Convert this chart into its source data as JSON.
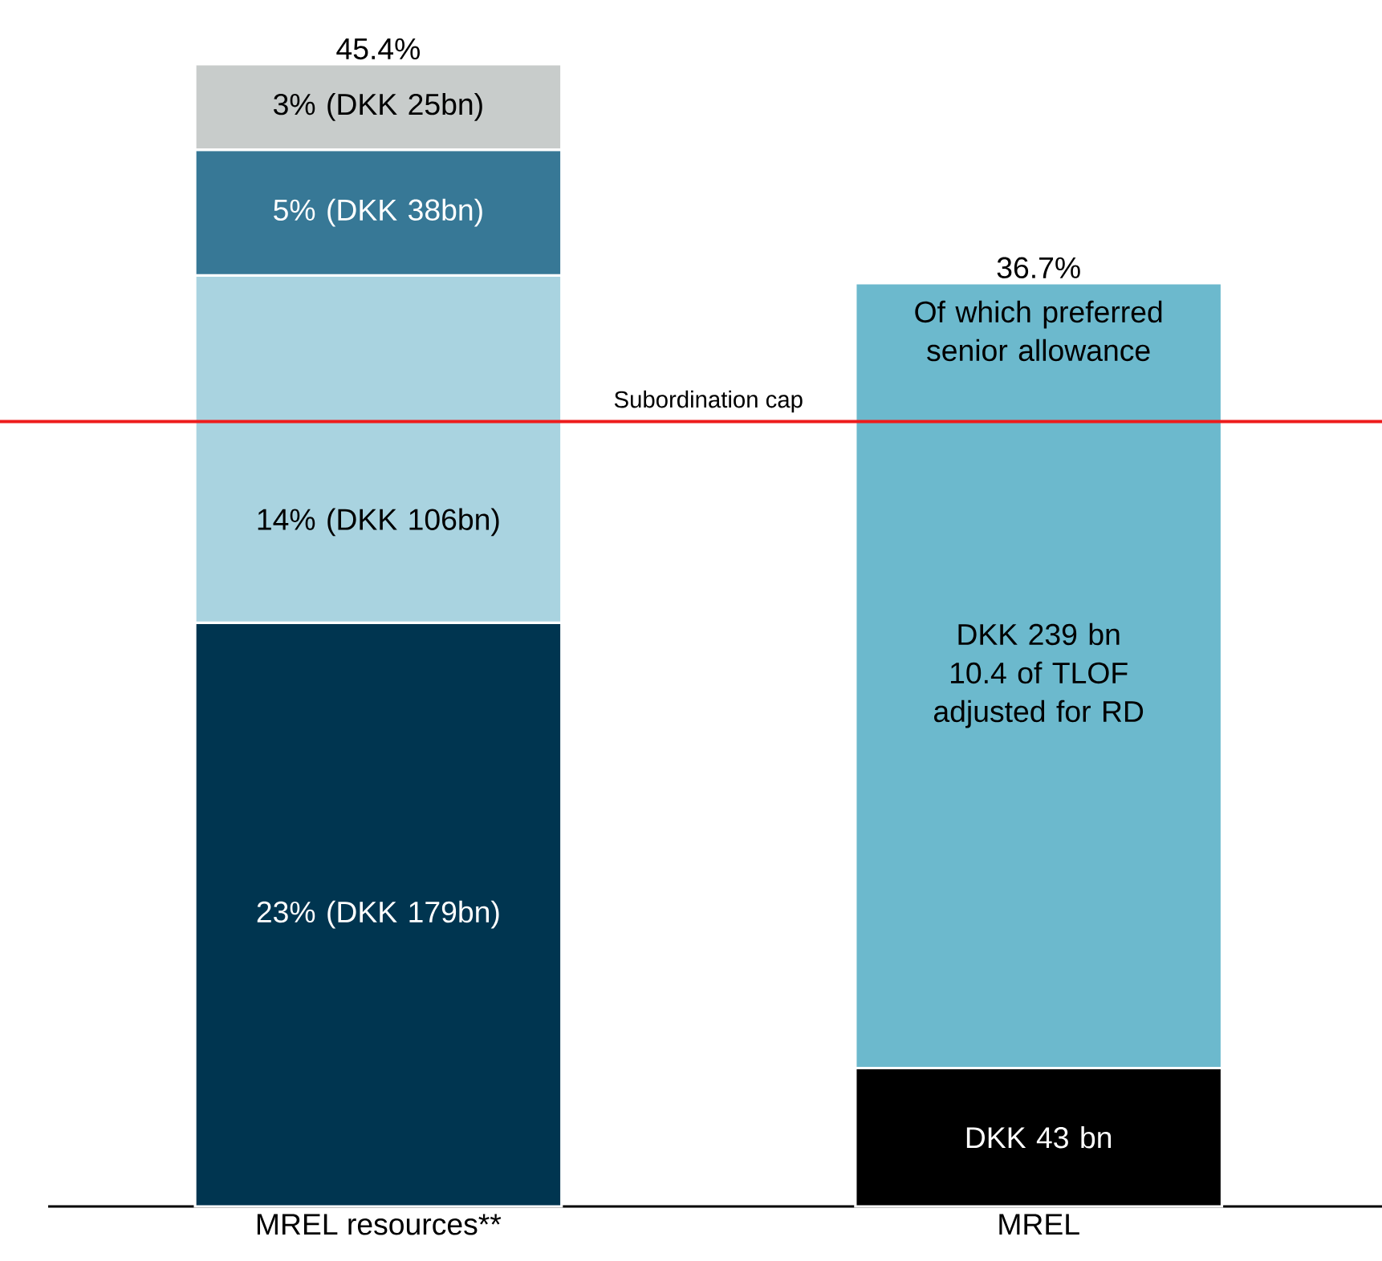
{
  "chart_data": {
    "type": "bar",
    "stacked": true,
    "categories": [
      "MREL resources**",
      "MREL"
    ],
    "series": [
      {
        "colors": [
          "#003550",
          "#000000"
        ],
        "values": [
          23.2,
          5.5
        ],
        "value_labels": [
          "23% (DKK 179bn)",
          "DKK 43 bn"
        ]
      },
      {
        "colors": [
          "#a9d3e0",
          "#6cb9cd"
        ],
        "values": [
          13.8,
          31.2
        ],
        "value_labels": [
          "14% (DKK 106bn)",
          "DKK 239 bn 10.4 of TLOF adjusted for RD"
        ]
      },
      {
        "colors": [
          "#377896",
          null
        ],
        "values": [
          5.0,
          null
        ],
        "value_labels": [
          "5% (DKK 38bn)",
          null
        ]
      },
      {
        "colors": [
          "#c8cccb",
          null
        ],
        "values": [
          3.4,
          null
        ],
        "value_labels": [
          "3% (DKK 25bn)",
          null
        ]
      }
    ],
    "totals": [
      "45.4%",
      "36.7%"
    ],
    "ref_lines": [
      {
        "axis": "y",
        "value": 31.2,
        "label": "Subordination cap",
        "color": "#ee1c1c"
      }
    ],
    "annotations": [
      "Of which preferred senior allowance"
    ]
  }
}
